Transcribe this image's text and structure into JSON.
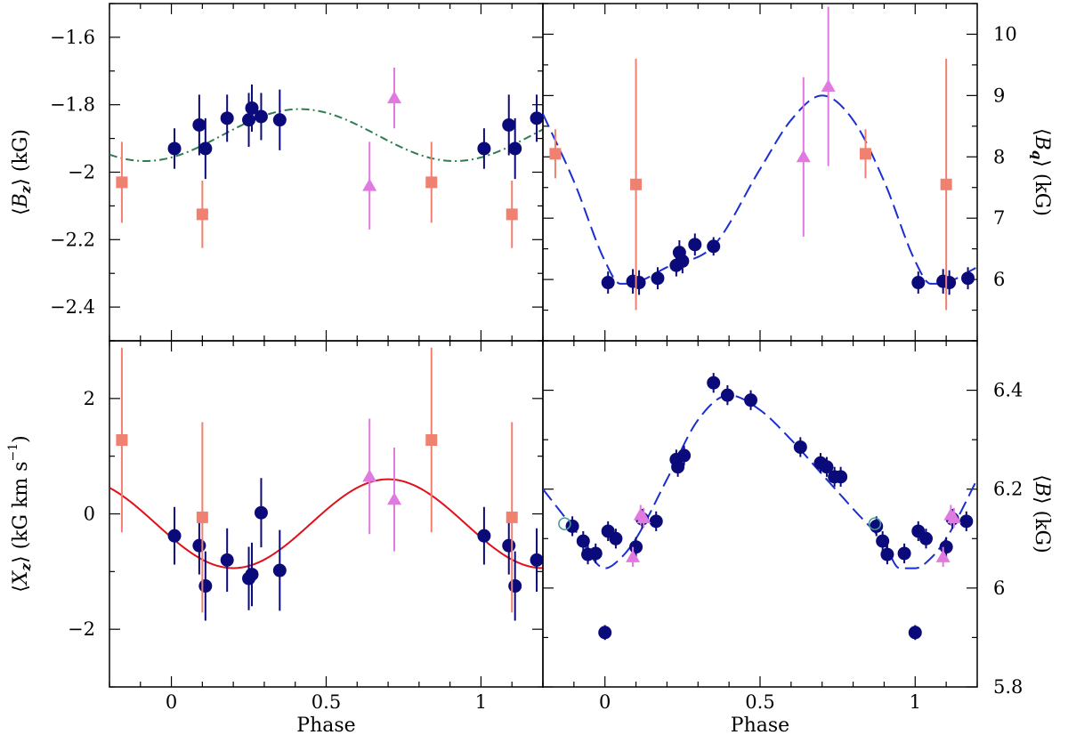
{
  "chart_data": [
    {
      "type": "scatter",
      "panel": "top-left",
      "ylabel": "⟨B_z⟩ (kG)",
      "ylabel_parts": {
        "open": "⟨",
        "letter": "B",
        "sub": "z",
        "close": "⟩",
        "unit": " (kG)"
      },
      "xlim": [
        -0.2,
        1.2
      ],
      "ylim": [
        -2.5,
        -1.5
      ],
      "y_ticks": [
        -1.6,
        -1.8,
        -2,
        -2.2,
        -2.4
      ],
      "y_tick_labels": [
        "−1.6",
        "−1.8",
        "−2",
        "−2.2",
        "−2.4"
      ],
      "fit_curve": {
        "style": "dash-dot",
        "color": "#2e7d4f",
        "mean": -1.89,
        "amplitude": 0.077,
        "phase_of_max": 0.415
      },
      "series": [
        {
          "marker": "circle",
          "color": "#0a0a7a",
          "points": [
            {
              "x": 0.01,
              "y": -1.93,
              "err": 0.06
            },
            {
              "x": 0.09,
              "y": -1.86,
              "err": 0.09
            },
            {
              "x": 0.11,
              "y": -1.93,
              "err": 0.09
            },
            {
              "x": 0.18,
              "y": -1.84,
              "err": 0.07
            },
            {
              "x": 0.25,
              "y": -1.845,
              "err": 0.08
            },
            {
              "x": 0.26,
              "y": -1.81,
              "err": 0.07
            },
            {
              "x": 0.29,
              "y": -1.835,
              "err": 0.07
            },
            {
              "x": 0.35,
              "y": -1.845,
              "err": 0.09
            },
            {
              "x": 1.01,
              "y": -1.93,
              "err": 0.06
            },
            {
              "x": 1.09,
              "y": -1.86,
              "err": 0.09
            },
            {
              "x": 1.11,
              "y": -1.93,
              "err": 0.09
            },
            {
              "x": 1.18,
              "y": -1.84,
              "err": 0.07
            }
          ]
        },
        {
          "marker": "square",
          "color": "#f08070",
          "points": [
            {
              "x": -0.16,
              "y": -2.03,
              "err": 0.12
            },
            {
              "x": 0.1,
              "y": -2.125,
              "err": 0.1
            },
            {
              "x": 0.84,
              "y": -2.03,
              "err": 0.12
            },
            {
              "x": 1.1,
              "y": -2.125,
              "err": 0.1
            }
          ]
        },
        {
          "marker": "triangle",
          "color": "#e07ae0",
          "points": [
            {
              "x": 0.64,
              "y": -2.04,
              "err": 0.13
            },
            {
              "x": 0.72,
              "y": -1.78,
              "err": 0.09
            }
          ]
        }
      ]
    },
    {
      "type": "scatter",
      "panel": "top-right",
      "ylabel": "⟨B_q⟩ (kG)",
      "ylabel_parts": {
        "open": "⟨",
        "letter": "B",
        "sub": "q",
        "close": "⟩",
        "unit": " (kG)"
      },
      "xlim": [
        -0.2,
        1.2
      ],
      "ylim": [
        5,
        10.5
      ],
      "y_ticks": [
        6,
        7,
        8,
        9,
        10
      ],
      "y_tick_labels": [
        "6",
        "7",
        "8",
        "9",
        "10"
      ],
      "fit_curve": {
        "style": "long-dash",
        "color": "#1a2fd0"
      },
      "series": [
        {
          "marker": "circle",
          "color": "#0a0a7a",
          "points": [
            {
              "x": 0.01,
              "y": 5.95,
              "err": 0.18
            },
            {
              "x": 0.09,
              "y": 5.97,
              "err": 0.2
            },
            {
              "x": 0.11,
              "y": 5.95,
              "err": 0.2
            },
            {
              "x": 0.17,
              "y": 6.02,
              "err": 0.18
            },
            {
              "x": 0.23,
              "y": 6.23,
              "err": 0.18
            },
            {
              "x": 0.24,
              "y": 6.44,
              "err": 0.2
            },
            {
              "x": 0.25,
              "y": 6.3,
              "err": 0.2
            },
            {
              "x": 0.29,
              "y": 6.57,
              "err": 0.18
            },
            {
              "x": 0.35,
              "y": 6.54,
              "err": 0.15
            },
            {
              "x": 1.01,
              "y": 5.95,
              "err": 0.18
            },
            {
              "x": 1.09,
              "y": 5.97,
              "err": 0.2
            },
            {
              "x": 1.11,
              "y": 5.95,
              "err": 0.2
            },
            {
              "x": 1.17,
              "y": 6.02,
              "err": 0.18
            }
          ]
        },
        {
          "marker": "square",
          "color": "#f08070",
          "points": [
            {
              "x": -0.16,
              "y": 8.05,
              "err": 0.4
            },
            {
              "x": 0.1,
              "y": 7.55,
              "err": 2.05
            },
            {
              "x": 0.84,
              "y": 8.05,
              "err": 0.4
            },
            {
              "x": 1.1,
              "y": 7.55,
              "err": 2.05
            }
          ]
        },
        {
          "marker": "triangle",
          "color": "#e07ae0",
          "points": [
            {
              "x": 0.64,
              "y": 8.0,
              "err": 1.3
            },
            {
              "x": 0.72,
              "y": 9.15,
              "err": 1.3
            }
          ]
        }
      ]
    },
    {
      "type": "scatter",
      "panel": "bottom-left",
      "ylabel": "⟨X_z⟩ (kG km s⁻¹)",
      "ylabel_parts": {
        "open": "⟨",
        "letter": "X",
        "sub": "z",
        "close": "⟩",
        "unit": " (kG km s",
        "sup": "−1",
        "unit_end": ")"
      },
      "xlabel": "Phase",
      "xlim": [
        -0.2,
        1.2
      ],
      "ylim": [
        -3,
        3
      ],
      "x_ticks": [
        0,
        0.5,
        1
      ],
      "x_tick_labels": [
        "0",
        "0.5",
        "1"
      ],
      "y_ticks": [
        2,
        0,
        -2
      ],
      "y_tick_labels": [
        "2",
        "0",
        "−2"
      ],
      "fit_curve": {
        "style": "solid",
        "color": "#e0101a",
        "mean": -0.17,
        "amplitude": 0.77,
        "phase_of_max": 0.7
      },
      "series": [
        {
          "marker": "circle",
          "color": "#0a0a7a",
          "points": [
            {
              "x": 0.01,
              "y": -0.38,
              "err": 0.5
            },
            {
              "x": 0.09,
              "y": -0.55,
              "err": 0.5
            },
            {
              "x": 0.11,
              "y": -1.25,
              "err": 0.6
            },
            {
              "x": 0.18,
              "y": -0.8,
              "err": 0.55
            },
            {
              "x": 0.25,
              "y": -1.12,
              "err": 0.55
            },
            {
              "x": 0.26,
              "y": -1.05,
              "err": 0.55
            },
            {
              "x": 0.29,
              "y": 0.02,
              "err": 0.6
            },
            {
              "x": 0.35,
              "y": -0.98,
              "err": 0.7
            },
            {
              "x": 1.01,
              "y": -0.38,
              "err": 0.5
            },
            {
              "x": 1.09,
              "y": -0.55,
              "err": 0.5
            },
            {
              "x": 1.11,
              "y": -1.25,
              "err": 0.6
            },
            {
              "x": 1.18,
              "y": -0.8,
              "err": 0.55
            }
          ]
        },
        {
          "marker": "square",
          "color": "#f08070",
          "points": [
            {
              "x": -0.16,
              "y": 1.28,
              "err": 1.6
            },
            {
              "x": 0.1,
              "y": -0.06,
              "err": 1.65
            },
            {
              "x": 0.84,
              "y": 1.28,
              "err": 1.6
            },
            {
              "x": 1.1,
              "y": -0.06,
              "err": 1.65
            }
          ]
        },
        {
          "marker": "triangle",
          "color": "#e07ae0",
          "points": [
            {
              "x": 0.64,
              "y": 0.65,
              "err": 1.0
            },
            {
              "x": 0.72,
              "y": 0.25,
              "err": 0.9
            }
          ]
        }
      ]
    },
    {
      "type": "scatter",
      "panel": "bottom-right",
      "ylabel": "⟨B⟩ (kG)",
      "ylabel_parts": {
        "open": "⟨",
        "letter": "B",
        "sub": "",
        "close": "⟩",
        "unit": " (kG)"
      },
      "xlabel": "Phase",
      "xlim": [
        -0.2,
        1.2
      ],
      "ylim": [
        5.8,
        6.5
      ],
      "x_ticks": [
        0,
        0.5,
        1
      ],
      "x_tick_labels": [
        "0",
        "0.5",
        "1"
      ],
      "y_ticks": [
        6.4,
        6.2,
        6,
        5.8
      ],
      "y_tick_labels": [
        "6.4",
        "6.2",
        "6",
        "5.8"
      ],
      "fit_curve": {
        "style": "long-dash",
        "color": "#1a2fd0"
      },
      "series": [
        {
          "marker": "circle",
          "color": "#0a0a7a",
          "points": [
            {
              "x": -0.105,
              "y": 6.125,
              "err": 0.02
            },
            {
              "x": -0.07,
              "y": 6.095,
              "err": 0.02
            },
            {
              "x": -0.055,
              "y": 6.068,
              "err": 0.02
            },
            {
              "x": -0.03,
              "y": 6.07,
              "err": 0.02
            },
            {
              "x": 0.0,
              "y": 5.91,
              "err": 0.015
            },
            {
              "x": 0.01,
              "y": 6.115,
              "err": 0.02
            },
            {
              "x": 0.035,
              "y": 6.1,
              "err": 0.02
            },
            {
              "x": 0.1,
              "y": 6.083,
              "err": 0.02
            },
            {
              "x": 0.12,
              "y": 6.14,
              "err": 0.02
            },
            {
              "x": 0.165,
              "y": 6.135,
              "err": 0.02
            },
            {
              "x": 0.23,
              "y": 6.26,
              "err": 0.02
            },
            {
              "x": 0.235,
              "y": 6.245,
              "err": 0.02
            },
            {
              "x": 0.255,
              "y": 6.268,
              "err": 0.02
            },
            {
              "x": 0.35,
              "y": 6.415,
              "err": 0.02
            },
            {
              "x": 0.395,
              "y": 6.39,
              "err": 0.02
            },
            {
              "x": 0.47,
              "y": 6.38,
              "err": 0.02
            },
            {
              "x": 0.63,
              "y": 6.285,
              "err": 0.02
            },
            {
              "x": 0.695,
              "y": 6.253,
              "err": 0.02
            },
            {
              "x": 0.715,
              "y": 6.245,
              "err": 0.02
            },
            {
              "x": 0.74,
              "y": 6.225,
              "err": 0.02
            },
            {
              "x": 0.76,
              "y": 6.225,
              "err": 0.02
            },
            {
              "x": 0.875,
              "y": 6.125,
              "err": 0.02
            },
            {
              "x": 0.895,
              "y": 6.095,
              "err": 0.02
            },
            {
              "x": 0.91,
              "y": 6.068,
              "err": 0.02
            },
            {
              "x": 0.965,
              "y": 6.07,
              "err": 0.02
            },
            {
              "x": 1.0,
              "y": 5.91,
              "err": 0.015
            },
            {
              "x": 1.01,
              "y": 6.115,
              "err": 0.02
            },
            {
              "x": 1.035,
              "y": 6.1,
              "err": 0.02
            },
            {
              "x": 1.1,
              "y": 6.083,
              "err": 0.02
            },
            {
              "x": 1.12,
              "y": 6.14,
              "err": 0.02
            },
            {
              "x": 1.165,
              "y": 6.135,
              "err": 0.02
            }
          ]
        },
        {
          "marker": "open-circle",
          "color": "#4a9a9a",
          "points": [
            {
              "x": -0.13,
              "y": 6.13,
              "err": 0
            },
            {
              "x": 0.87,
              "y": 6.13,
              "err": 0
            }
          ]
        },
        {
          "marker": "triangle",
          "color": "#e07ae0",
          "points": [
            {
              "x": 0.09,
              "y": 6.063,
              "err": 0.02
            },
            {
              "x": 0.115,
              "y": 6.148,
              "err": 0.02
            },
            {
              "x": 0.125,
              "y": 6.142,
              "err": 0.02
            },
            {
              "x": 1.09,
              "y": 6.063,
              "err": 0.02
            },
            {
              "x": 1.115,
              "y": 6.148,
              "err": 0.02
            },
            {
              "x": 1.125,
              "y": 6.142,
              "err": 0.02
            }
          ]
        }
      ]
    }
  ]
}
